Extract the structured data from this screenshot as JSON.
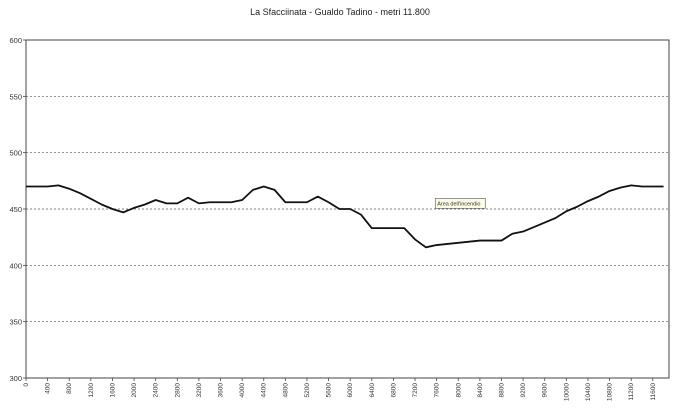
{
  "chart_data": {
    "type": "line",
    "title": "La Sfacciinata - Gualdo Tadino - metri 11.800",
    "xlabel": "",
    "ylabel": "",
    "ylim": [
      300,
      600
    ],
    "yticks": [
      "600",
      "550",
      "500",
      "450",
      "400",
      "350",
      "300"
    ],
    "ytick_values": [
      600,
      550,
      500,
      450,
      400,
      350,
      300
    ],
    "xticks": [
      "0",
      "400",
      "800",
      "1200",
      "1600",
      "2000",
      "2400",
      "2800",
      "3200",
      "3600",
      "4000",
      "4400",
      "4800",
      "5200",
      "5600",
      "6000",
      "6400",
      "6800",
      "7200",
      "7600",
      "8000",
      "8400",
      "8800",
      "9200",
      "9600",
      "10000",
      "10400",
      "10800",
      "11200",
      "11600"
    ],
    "xtick_values": [
      0,
      400,
      800,
      1200,
      1600,
      2000,
      2400,
      2800,
      3200,
      3600,
      4000,
      4400,
      4800,
      5200,
      5600,
      6000,
      6400,
      6800,
      7200,
      7600,
      8000,
      8400,
      8800,
      9200,
      9600,
      10000,
      10400,
      10800,
      11200,
      11600
    ],
    "xlim": [
      0,
      11900
    ],
    "grid": "horizontal dashed",
    "line_color": "#111111",
    "annotation": {
      "text": "Area dell'incendio",
      "x": 7500,
      "y": 455
    },
    "series": [
      {
        "x": [
          0,
          200,
          400,
          600,
          800,
          1000,
          1200,
          1400,
          1600,
          1800,
          2000,
          2200,
          2400,
          2600,
          2800,
          3000,
          3200,
          3400,
          3600,
          3800,
          4000,
          4200,
          4400,
          4600,
          4800,
          5000,
          5200,
          5400,
          5600,
          5800,
          6000,
          6200,
          6400,
          6600,
          6800,
          7000,
          7200,
          7400,
          7600,
          7800,
          8000,
          8200,
          8400,
          8600,
          8800,
          9000,
          9200,
          9400,
          9600,
          9800,
          10000,
          10200,
          10400,
          10600,
          10800,
          11000,
          11200,
          11400,
          11600,
          11800
        ],
        "values": [
          470,
          470,
          470,
          471,
          468,
          464,
          459,
          454,
          450,
          447,
          451,
          454,
          458,
          455,
          455,
          460,
          455,
          456,
          456,
          456,
          458,
          467,
          470,
          467,
          456,
          456,
          456,
          461,
          456,
          450,
          450,
          445,
          433,
          433,
          433,
          433,
          423,
          416,
          418,
          419,
          420,
          421,
          422,
          422,
          422,
          428,
          430,
          434,
          438,
          442,
          448,
          452,
          457,
          461,
          466,
          469,
          471,
          470,
          470,
          470
        ]
      }
    ]
  }
}
